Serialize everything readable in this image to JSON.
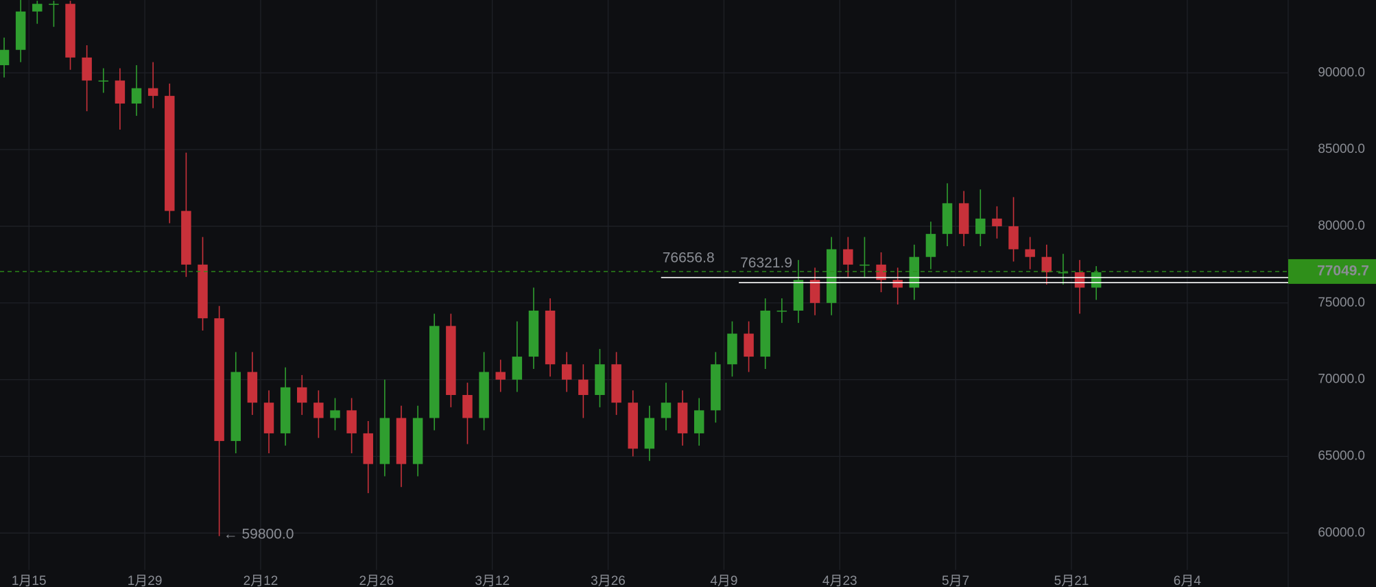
{
  "chart_data": {
    "type": "candlestick",
    "x": [
      12,
      14,
      16,
      18,
      20,
      22,
      24,
      26,
      28,
      30,
      32,
      34,
      36,
      38,
      40,
      42,
      44,
      46,
      48,
      50,
      52,
      54,
      56,
      58,
      60,
      62,
      64,
      66,
      68,
      70,
      72,
      74,
      76,
      78,
      80,
      82,
      84,
      86,
      88,
      90,
      92,
      94,
      96,
      98,
      100,
      102,
      104,
      106,
      108,
      110,
      112,
      114,
      116,
      118,
      120,
      122,
      124,
      126,
      128,
      130,
      132,
      134,
      136,
      138,
      140,
      142,
      144
    ],
    "open": [
      90500,
      91500,
      94000,
      94500,
      94500,
      91000,
      89500,
      89500,
      88000,
      89000,
      88500,
      81000,
      77500,
      74000,
      66000,
      70500,
      68500,
      66500,
      69500,
      68500,
      67500,
      68000,
      66500,
      64500,
      67500,
      64500,
      67500,
      73500,
      69000,
      67500,
      70500,
      70000,
      71500,
      74500,
      71000,
      70000,
      69000,
      71000,
      68500,
      65500,
      67500,
      68500,
      66500,
      68000,
      71000,
      73000,
      71500,
      74500,
      74500,
      76500,
      75000,
      78500,
      77500,
      77500,
      76500,
      76000,
      78000,
      79500,
      81500,
      79500,
      80500,
      80000,
      78500,
      78000,
      77000,
      77000,
      76000
    ],
    "high": [
      92300,
      94800,
      94700,
      94700,
      94700,
      91800,
      90300,
      90300,
      90500,
      90700,
      89300,
      84800,
      79300,
      74800,
      71800,
      71800,
      69300,
      70800,
      70300,
      69300,
      68800,
      68800,
      67300,
      70000,
      68300,
      68300,
      74300,
      74300,
      69800,
      71800,
      71300,
      73800,
      76000,
      75300,
      71800,
      71000,
      72000,
      71800,
      69300,
      68300,
      69800,
      69300,
      68800,
      71800,
      73800,
      73800,
      75300,
      75300,
      77800,
      77300,
      79300,
      79300,
      79300,
      78300,
      77300,
      78800,
      80300,
      82800,
      82300,
      82400,
      81300,
      81900,
      79300,
      78800,
      78200,
      77800,
      77400
    ],
    "low": [
      89700,
      90700,
      93200,
      93000,
      90200,
      87500,
      88700,
      86300,
      87200,
      87700,
      80200,
      76700,
      73200,
      59800,
      65200,
      67700,
      65200,
      65700,
      67700,
      66200,
      66700,
      65200,
      62600,
      63700,
      63000,
      63700,
      66700,
      68200,
      65800,
      66700,
      69200,
      69200,
      70700,
      70200,
      69200,
      67500,
      68200,
      67700,
      65000,
      64700,
      66700,
      65700,
      65700,
      67200,
      70200,
      70500,
      70700,
      73700,
      73700,
      74200,
      74200,
      76700,
      76700,
      75700,
      74900,
      75200,
      77200,
      78700,
      78700,
      78700,
      79200,
      77700,
      77200,
      76200,
      76200,
      74300,
      75200
    ],
    "close": [
      91500,
      94000,
      94500,
      94500,
      91000,
      89500,
      89500,
      88000,
      89000,
      88500,
      81000,
      77500,
      74000,
      66000,
      70500,
      68500,
      66500,
      69500,
      68500,
      67500,
      68000,
      66500,
      64500,
      67500,
      64500,
      67500,
      73500,
      69000,
      67500,
      70500,
      70000,
      71500,
      74500,
      71000,
      70000,
      69000,
      71000,
      68500,
      65500,
      67500,
      68500,
      66500,
      68000,
      71000,
      73000,
      71500,
      74500,
      74500,
      76500,
      75000,
      78500,
      77500,
      77500,
      76500,
      76000,
      78000,
      79500,
      81500,
      79500,
      80500,
      80000,
      78500,
      78000,
      77000,
      77000,
      76000,
      77000
    ],
    "up_color": "#2f9e2f",
    "down_color": "#c8313a",
    "xlim": [
      11.5,
      167.2
    ],
    "ylim": [
      57600,
      94750
    ],
    "xticks": [
      {
        "value": 15,
        "label": "1月15"
      },
      {
        "value": 29,
        "label": "1月29"
      },
      {
        "value": 43,
        "label": "2月12"
      },
      {
        "value": 57,
        "label": "2月26"
      },
      {
        "value": 71,
        "label": "3月12"
      },
      {
        "value": 85,
        "label": "3月26"
      },
      {
        "value": 99,
        "label": "4月9"
      },
      {
        "value": 113,
        "label": "4月23"
      },
      {
        "value": 127,
        "label": "5月7"
      },
      {
        "value": 141,
        "label": "5月21"
      },
      {
        "value": 155,
        "label": "6月4"
      }
    ],
    "yticks": [
      {
        "value": 60000,
        "label": "60000.0"
      },
      {
        "value": 65000,
        "label": "65000.0"
      },
      {
        "value": 70000,
        "label": "70000.0"
      },
      {
        "value": 75000,
        "label": "75000.0"
      },
      {
        "value": 80000,
        "label": "80000.0"
      },
      {
        "value": 85000,
        "label": "85000.0"
      },
      {
        "value": 90000,
        "label": "90000.0"
      }
    ],
    "grid": true,
    "low_marker": {
      "x": 38,
      "value": 59800,
      "label": "← 59800.0"
    },
    "levels": [
      {
        "x": 91.4,
        "value": 76656.8
      },
      {
        "x": 100.8,
        "value": 76321.9
      }
    ],
    "last_price": {
      "value": 77049.7,
      "color": "#2f8f1a"
    }
  }
}
